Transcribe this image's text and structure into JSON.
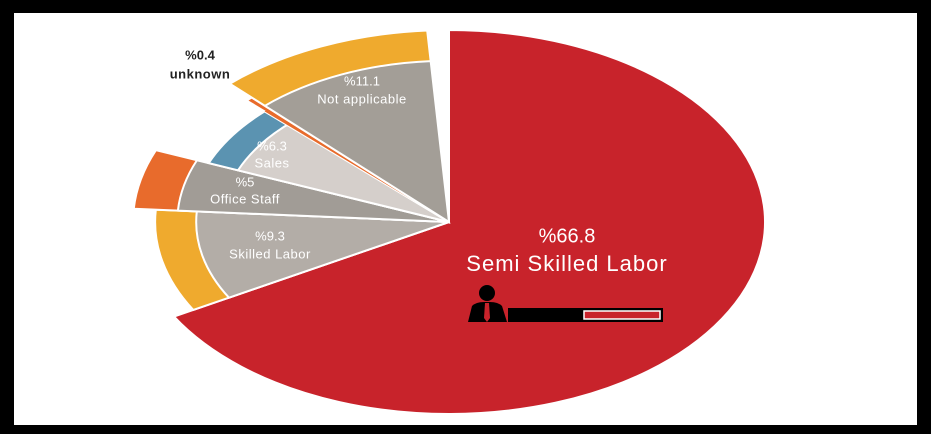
{
  "chart_data": {
    "type": "pie",
    "categories": [
      "Semi Skilled Labor",
      "Skilled Labor",
      "Office Staff",
      "Sales",
      "unknown",
      "Not applicable"
    ],
    "values": [
      66.8,
      9.3,
      5,
      6.3,
      0.4,
      11.1
    ],
    "value_labels": [
      "%66.8",
      "%9.3",
      "%5",
      "%6.3",
      "%0.4",
      "%11.1"
    ],
    "colors": [
      "#c8232b",
      "#b3ada7",
      "#a19c96",
      "#d5cfcb",
      "#e86b2c",
      "#a39e97"
    ],
    "accent_colors": [
      null,
      "#efaa2e",
      "#e86b2c",
      "#5b93b1",
      "#e86b2c",
      "#efaa2e"
    ]
  }
}
